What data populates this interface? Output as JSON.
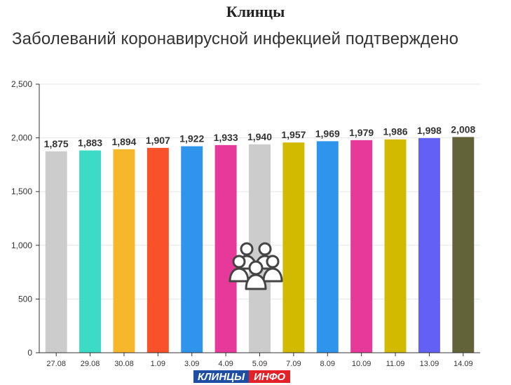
{
  "header": {
    "city": "Клинцы",
    "title": "Заболеваний коронавирусной инфекцией подтверждено"
  },
  "logo": {
    "part1": "КЛИНЦЫ",
    "part2": "ИНФО",
    "colors": {
      "part1": "#1d4ea3",
      "part2": "#e32128"
    }
  },
  "watermark_icon": "people-group-icon",
  "chart_data": {
    "type": "bar",
    "categories": [
      "27.08",
      "29.08",
      "30.08",
      "1.09",
      "3.09",
      "4.09",
      "5.09",
      "7.09",
      "8.09",
      "10.09",
      "11.09",
      "13.09",
      "14.09"
    ],
    "values": [
      1875,
      1883,
      1894,
      1907,
      1922,
      1933,
      1940,
      1957,
      1969,
      1979,
      1986,
      1998,
      2008
    ],
    "value_labels": [
      "1,875",
      "1,883",
      "1,894",
      "1,907",
      "1,922",
      "1,933",
      "1,940",
      "1,957",
      "1,969",
      "1,979",
      "1,986",
      "1,998",
      "2,008"
    ],
    "colors": [
      "#cccccc",
      "#3bdbc6",
      "#f6b72a",
      "#f9512a",
      "#2f94ec",
      "#e6399a",
      "#cccccc",
      "#d1ba00",
      "#2f94ec",
      "#e6399a",
      "#d1ba00",
      "#6361f5",
      "#626339"
    ],
    "ylim": [
      0,
      2500
    ],
    "yticks": [
      0,
      500,
      1000,
      1500,
      2000,
      2500
    ],
    "ytick_labels": [
      "0",
      "500",
      "1,000",
      "1,500",
      "2,000",
      "2,500"
    ],
    "grid": true,
    "title": "Заболеваний коронавирусной инфекцией подтверждено",
    "xlabel": "",
    "ylabel": ""
  }
}
